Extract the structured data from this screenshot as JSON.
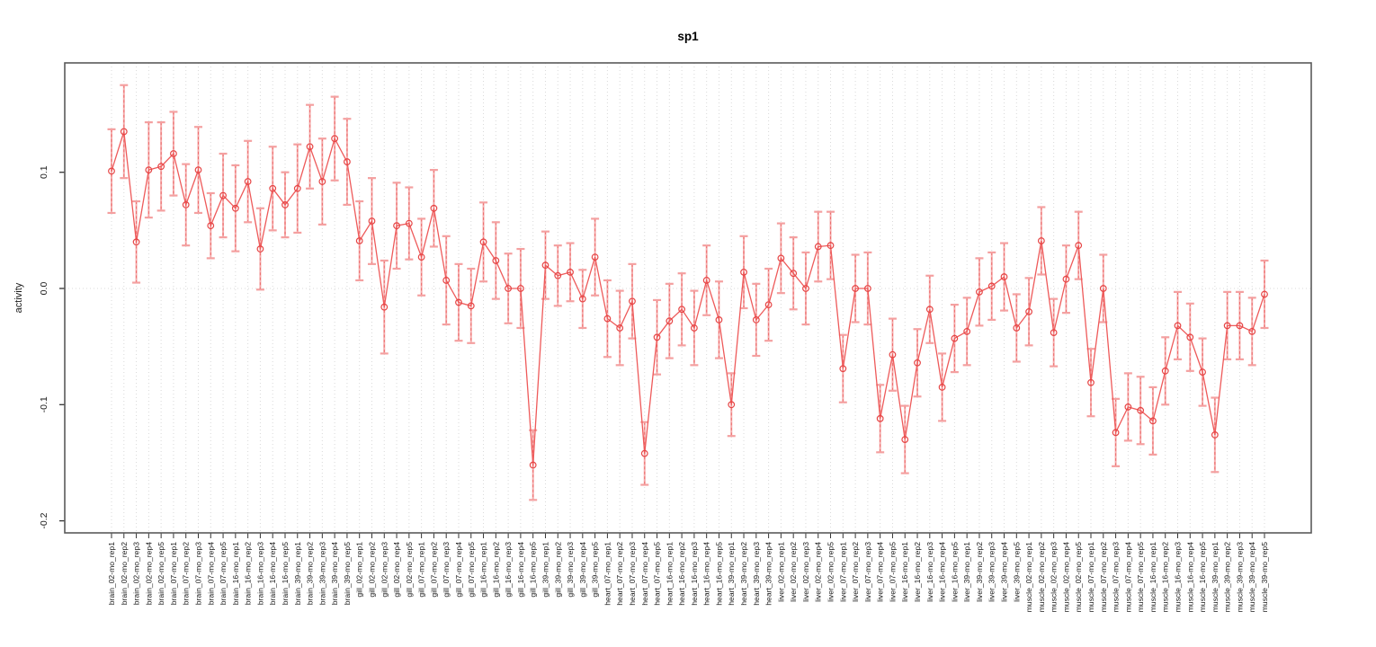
{
  "title": "sp1",
  "colors": {
    "series_line": "#ee5a5a",
    "point_stroke": "#e64545",
    "error_cap": "#f4a0a0",
    "error_stem": "#ee6a6a",
    "grid": "#d9d9d9",
    "axis": "#5a5a5a",
    "tick": "#333333",
    "background": "#ffffff"
  },
  "chart_data": {
    "type": "line",
    "title": "sp1",
    "xlabel": "",
    "ylabel": "activity",
    "ylim": [
      -0.21,
      0.195
    ],
    "yticks": [
      0.1,
      0.0,
      -0.1,
      -0.2
    ],
    "ytick_labels": [
      "0.1",
      "0.0",
      "-0.1",
      "-0.2"
    ],
    "grid": "vertical dotted gridline at every category; dotted horizontal line at y=0",
    "legend_position": "none",
    "marker": "open-circle",
    "error_bars": true,
    "categories": [
      "brain_02-mo_rep1",
      "brain_02-mo_rep2",
      "brain_02-mo_rep3",
      "brain_02-mo_rep4",
      "brain_02-mo_rep5",
      "brain_07-mo_rep1",
      "brain_07-mo_rep2",
      "brain_07-mo_rep3",
      "brain_07-mo_rep4",
      "brain_07-mo_rep5",
      "brain_16-mo_rep1",
      "brain_16-mo_rep2",
      "brain_16-mo_rep3",
      "brain_16-mo_rep4",
      "brain_16-mo_rep5",
      "brain_39-mo_rep1",
      "brain_39-mo_rep2",
      "brain_39-mo_rep3",
      "brain_39-mo_rep4",
      "brain_39-mo_rep5",
      "gill_02-mo_rep1",
      "gill_02-mo_rep2",
      "gill_02-mo_rep3",
      "gill_02-mo_rep4",
      "gill_02-mo_rep5",
      "gill_07-mo_rep1",
      "gill_07-mo_rep2",
      "gill_07-mo_rep3",
      "gill_07-mo_rep4",
      "gill_07-mo_rep5",
      "gill_16-mo_rep1",
      "gill_16-mo_rep2",
      "gill_16-mo_rep3",
      "gill_16-mo_rep4",
      "gill_16-mo_rep5",
      "gill_39-mo_rep1",
      "gill_39-mo_rep2",
      "gill_39-mo_rep3",
      "gill_39-mo_rep4",
      "gill_39-mo_rep5",
      "heart_07-mo_rep1",
      "heart_07-mo_rep2",
      "heart_07-mo_rep3",
      "heart_07-mo_rep4",
      "heart_07-mo_rep5",
      "heart_16-mo_rep1",
      "heart_16-mo_rep2",
      "heart_16-mo_rep3",
      "heart_16-mo_rep4",
      "heart_16-mo_rep5",
      "heart_39-mo_rep1",
      "heart_39-mo_rep2",
      "heart_39-mo_rep3",
      "heart_39-mo_rep4",
      "liver_02-mo_rep1",
      "liver_02-mo_rep2",
      "liver_02-mo_rep3",
      "liver_02-mo_rep4",
      "liver_02-mo_rep5",
      "liver_07-mo_rep1",
      "liver_07-mo_rep2",
      "liver_07-mo_rep3",
      "liver_07-mo_rep4",
      "liver_07-mo_rep5",
      "liver_16-mo_rep1",
      "liver_16-mo_rep2",
      "liver_16-mo_rep3",
      "liver_16-mo_rep4",
      "liver_16-mo_rep5",
      "liver_39-mo_rep1",
      "liver_39-mo_rep2",
      "liver_39-mo_rep3",
      "liver_39-mo_rep4",
      "liver_39-mo_rep5",
      "muscle_02-mo_rep1",
      "muscle_02-mo_rep2",
      "muscle_02-mo_rep3",
      "muscle_02-mo_rep4",
      "muscle_02-mo_rep5",
      "muscle_07-mo_rep1",
      "muscle_07-mo_rep2",
      "muscle_07-mo_rep3",
      "muscle_07-mo_rep4",
      "muscle_07-mo_rep5",
      "muscle_16-mo_rep1",
      "muscle_16-mo_rep2",
      "muscle_16-mo_rep3",
      "muscle_16-mo_rep4",
      "muscle_16-mo_rep5",
      "muscle_39-mo_rep1",
      "muscle_39-mo_rep2",
      "muscle_39-mo_rep3",
      "muscle_39-mo_rep4",
      "muscle_39-mo_rep5"
    ],
    "values": [
      0.101,
      0.135,
      0.04,
      0.102,
      0.105,
      0.116,
      0.072,
      0.102,
      0.054,
      0.08,
      0.069,
      0.092,
      0.034,
      0.086,
      0.072,
      0.086,
      0.122,
      0.092,
      0.129,
      0.109,
      0.041,
      0.058,
      -0.016,
      0.054,
      0.056,
      0.027,
      0.069,
      0.007,
      -0.012,
      -0.015,
      0.04,
      0.024,
      0.0,
      0.0,
      -0.152,
      0.02,
      0.011,
      0.014,
      -0.009,
      0.027,
      -0.026,
      -0.034,
      -0.011,
      -0.142,
      -0.042,
      -0.028,
      -0.018,
      -0.034,
      0.007,
      -0.027,
      -0.1,
      0.014,
      -0.027,
      -0.014,
      0.026,
      0.013,
      0.0,
      0.036,
      0.037,
      -0.069,
      0.0,
      0.0,
      -0.112,
      -0.057,
      -0.13,
      -0.064,
      -0.018,
      -0.085,
      -0.043,
      -0.037,
      -0.003,
      0.002,
      0.01,
      -0.034,
      -0.02,
      0.041,
      -0.038,
      0.008,
      0.037,
      -0.081,
      0.0,
      -0.124,
      -0.102,
      -0.105,
      -0.114,
      -0.071,
      -0.032,
      -0.042,
      -0.072,
      -0.126,
      -0.032,
      -0.032,
      -0.037,
      -0.005
    ],
    "errors": [
      0.036,
      0.04,
      0.035,
      0.041,
      0.038,
      0.036,
      0.035,
      0.037,
      0.028,
      0.036,
      0.037,
      0.035,
      0.035,
      0.036,
      0.028,
      0.038,
      0.036,
      0.037,
      0.036,
      0.037,
      0.034,
      0.037,
      0.04,
      0.037,
      0.031,
      0.033,
      0.033,
      0.038,
      0.033,
      0.032,
      0.034,
      0.033,
      0.03,
      0.034,
      0.03,
      0.029,
      0.026,
      0.025,
      0.025,
      0.033,
      0.033,
      0.032,
      0.032,
      0.027,
      0.032,
      0.032,
      0.031,
      0.032,
      0.03,
      0.033,
      0.027,
      0.031,
      0.031,
      0.031,
      0.03,
      0.031,
      0.031,
      0.03,
      0.029,
      0.029,
      0.029,
      0.031,
      0.029,
      0.031,
      0.029,
      0.029,
      0.029,
      0.029,
      0.029,
      0.029,
      0.029,
      0.029,
      0.029,
      0.029,
      0.029,
      0.029,
      0.029,
      0.029,
      0.029,
      0.029,
      0.029,
      0.029,
      0.029,
      0.029,
      0.029,
      0.029,
      0.029,
      0.029,
      0.029,
      0.032,
      0.029,
      0.029,
      0.029,
      0.029
    ]
  }
}
